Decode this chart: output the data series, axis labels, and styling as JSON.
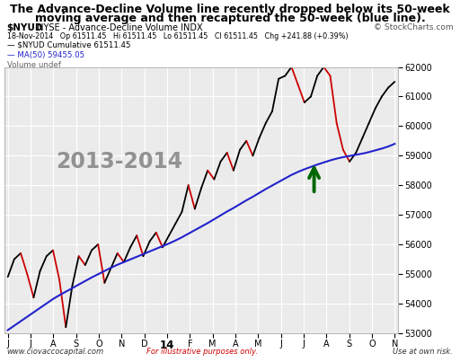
{
  "title_line1": "The Advance-Decline Volume line recently dropped below its 50-week",
  "title_line2": "moving average and then recaptured the 50-week (blue line).",
  "subtitle1_bold": "$NYUD",
  "subtitle1_rest": " NYSE - Advance-Decline Volume INDX",
  "subtitle2": "© StockCharts.com",
  "info_line": "18-Nov-2014   Op 61511.45   Hi 61511.45   Lo 61511.45   Cl 61511.45   Chg +241.88 (+0.39%)",
  "legend1": "— $NYUD Cumulative 61511.45",
  "legend2": "— MA(50) 59455.05",
  "legend3": "Volume undef",
  "year_label": "2013-2014",
  "x_labels": [
    "J",
    "J",
    "A",
    "S",
    "O",
    "N",
    "D",
    "14",
    "F",
    "M",
    "A",
    "M",
    "J",
    "J",
    "A",
    "S",
    "O",
    "N"
  ],
  "footer_left": "www.ciovaccocapital.com",
  "footer_mid": "For illustrative purposes only.",
  "footer_right": "Use at own risk.",
  "ylim": [
    53000,
    62000
  ],
  "yticks": [
    53000,
    54000,
    55000,
    56000,
    57000,
    58000,
    59000,
    60000,
    61000,
    62000
  ],
  "bg_color": "#ffffff",
  "plot_bg": "#ebebeb",
  "grid_color": "#ffffff",
  "main_line_color": "#000000",
  "ma_line_color": "#2222cc",
  "candle_up": "#000000",
  "candle_down": "#cc0000",
  "arrow_color": "#006600",
  "main_data": [
    54900,
    55500,
    55700,
    55000,
    54200,
    55100,
    55600,
    55800,
    54800,
    53200,
    54600,
    55600,
    55300,
    55800,
    56000,
    54700,
    55200,
    55700,
    55400,
    55900,
    56300,
    55600,
    56100,
    56400,
    55900,
    56300,
    56700,
    57100,
    58000,
    57200,
    57900,
    58500,
    58200,
    58800,
    59100,
    58500,
    59200,
    59500,
    59000,
    59600,
    60100,
    60500,
    61600,
    61700,
    62000,
    61400,
    60800,
    61000,
    61700,
    62000,
    61700,
    60100,
    59200,
    58800,
    59100,
    59600,
    60100,
    60600,
    61000,
    61300,
    61500
  ],
  "ma_data": [
    53100,
    53250,
    53400,
    53550,
    53700,
    53850,
    54000,
    54150,
    54280,
    54400,
    54520,
    54640,
    54760,
    54880,
    54990,
    55100,
    55210,
    55310,
    55400,
    55490,
    55580,
    55670,
    55760,
    55850,
    55940,
    56030,
    56130,
    56240,
    56360,
    56480,
    56600,
    56720,
    56850,
    56980,
    57110,
    57230,
    57360,
    57490,
    57610,
    57740,
    57870,
    57990,
    58110,
    58230,
    58350,
    58450,
    58540,
    58620,
    58700,
    58770,
    58840,
    58900,
    58950,
    58990,
    59030,
    59070,
    59120,
    59180,
    59240,
    59310,
    59400
  ]
}
